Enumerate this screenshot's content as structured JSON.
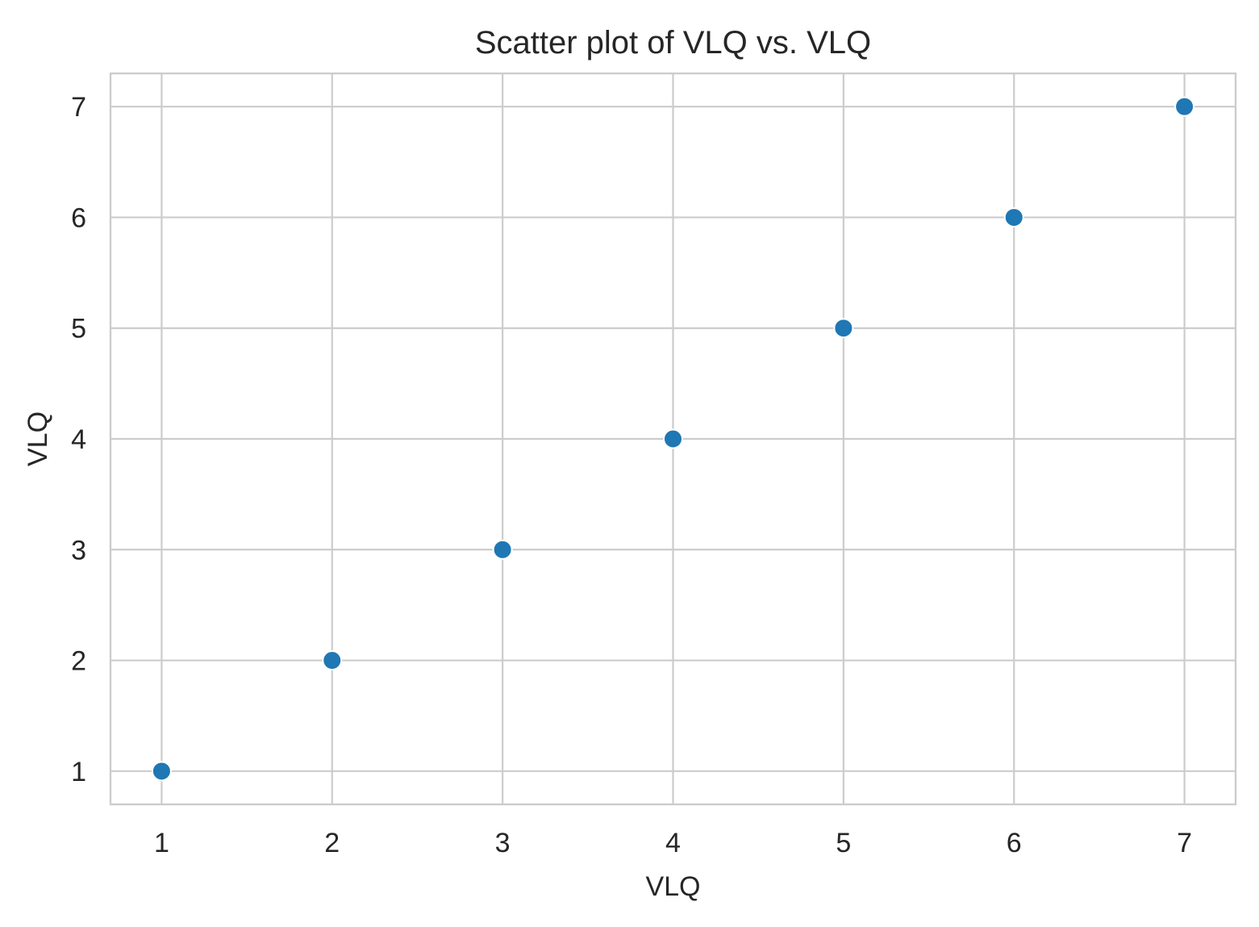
{
  "chart_data": {
    "type": "scatter",
    "title": "Scatter plot of VLQ vs. VLQ",
    "xlabel": "VLQ",
    "ylabel": "VLQ",
    "x": [
      1,
      2,
      3,
      4,
      5,
      6,
      7
    ],
    "y": [
      1,
      2,
      3,
      4,
      5,
      6,
      7
    ],
    "xlim": [
      0.7,
      7.3
    ],
    "ylim": [
      0.7,
      7.3
    ],
    "xticks": [
      1,
      2,
      3,
      4,
      5,
      6,
      7
    ],
    "yticks": [
      1,
      2,
      3,
      4,
      5,
      6,
      7
    ],
    "grid": true,
    "marker_color": "#1f77b4",
    "marker_edge_color": "#ffffff"
  }
}
